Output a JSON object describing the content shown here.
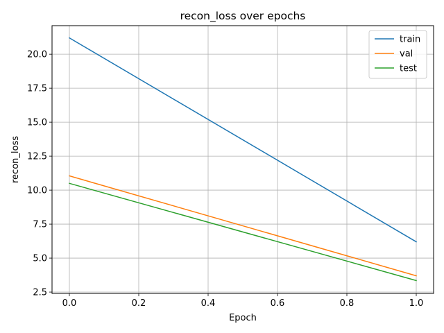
{
  "chart_data": {
    "type": "line",
    "title": "recon_loss over epochs",
    "xlabel": "Epoch",
    "ylabel": "recon_loss",
    "x": [
      0.0,
      1.0
    ],
    "xlim": [
      -0.05,
      1.05
    ],
    "ylim": [
      2.4,
      22.1
    ],
    "xticks": [
      0.0,
      0.2,
      0.4,
      0.6,
      0.8,
      1.0
    ],
    "xtick_labels": [
      "0.0",
      "0.2",
      "0.4",
      "0.6",
      "0.8",
      "1.0"
    ],
    "yticks": [
      2.5,
      5.0,
      7.5,
      10.0,
      12.5,
      15.0,
      17.5,
      20.0
    ],
    "ytick_labels": [
      "2.5",
      "5.0",
      "7.5",
      "10.0",
      "12.5",
      "15.0",
      "17.5",
      "20.0"
    ],
    "grid": true,
    "legend_position": "top-right",
    "series": [
      {
        "name": "train",
        "values": [
          21.2,
          6.2
        ],
        "color": "#1f77b4"
      },
      {
        "name": "val",
        "values": [
          11.05,
          3.7
        ],
        "color": "#ff7f0e"
      },
      {
        "name": "test",
        "values": [
          10.5,
          3.35
        ],
        "color": "#2ca02c"
      }
    ]
  }
}
